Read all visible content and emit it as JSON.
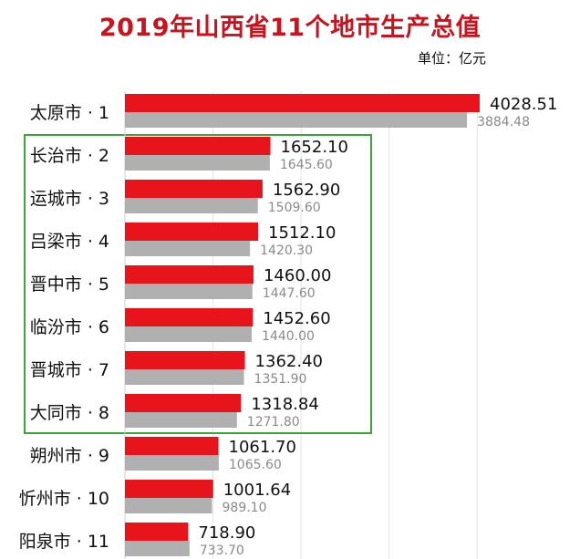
{
  "title": "2019年山西省11个地市生产总值",
  "unit": "单位：亿元",
  "colors": {
    "current_bar": "#e8141c",
    "previous_bar": "#b0b0b0",
    "highlight_box": "#3aa63a",
    "title": "#c8141e"
  },
  "chart_data": {
    "type": "bar",
    "orientation": "horizontal",
    "title": "2019年山西省11个地市生产总值",
    "unit": "单位：亿元",
    "categories": [
      "太原市 · 1",
      "长治市 · 2",
      "运城市 · 3",
      "吕梁市 · 4",
      "晋中市 · 5",
      "临汾市 · 6",
      "晋城市 · 7",
      "大同市 · 8",
      "朔州市 · 9",
      "忻州市 · 10",
      "阳泉市 · 11"
    ],
    "series": [
      {
        "values": [
          4028.51,
          1652.1,
          1562.9,
          1512.1,
          1460.0,
          1452.6,
          1362.4,
          1318.84,
          1061.7,
          1001.64,
          718.9
        ],
        "labels": [
          "4028.51",
          "1652.10",
          "1562.90",
          "1512.10",
          "1460.00",
          "1452.60",
          "1362.40",
          "1318.84",
          "1061.70",
          "1001.64",
          "718.90"
        ]
      },
      {
        "values": [
          3884.48,
          1645.6,
          1509.6,
          1420.3,
          1447.6,
          1440.0,
          1351.9,
          1271.8,
          1065.6,
          989.1,
          733.7
        ],
        "labels": [
          "3884.48",
          "1645.60",
          "1509.60",
          "1420.30",
          "1447.60",
          "1440.00",
          "1351.90",
          "1271.80",
          "1065.60",
          "989.10",
          "733.70"
        ]
      }
    ],
    "xlim": [
      0,
      4500
    ],
    "grid": true,
    "highlighted_range": [
      1,
      7
    ]
  }
}
